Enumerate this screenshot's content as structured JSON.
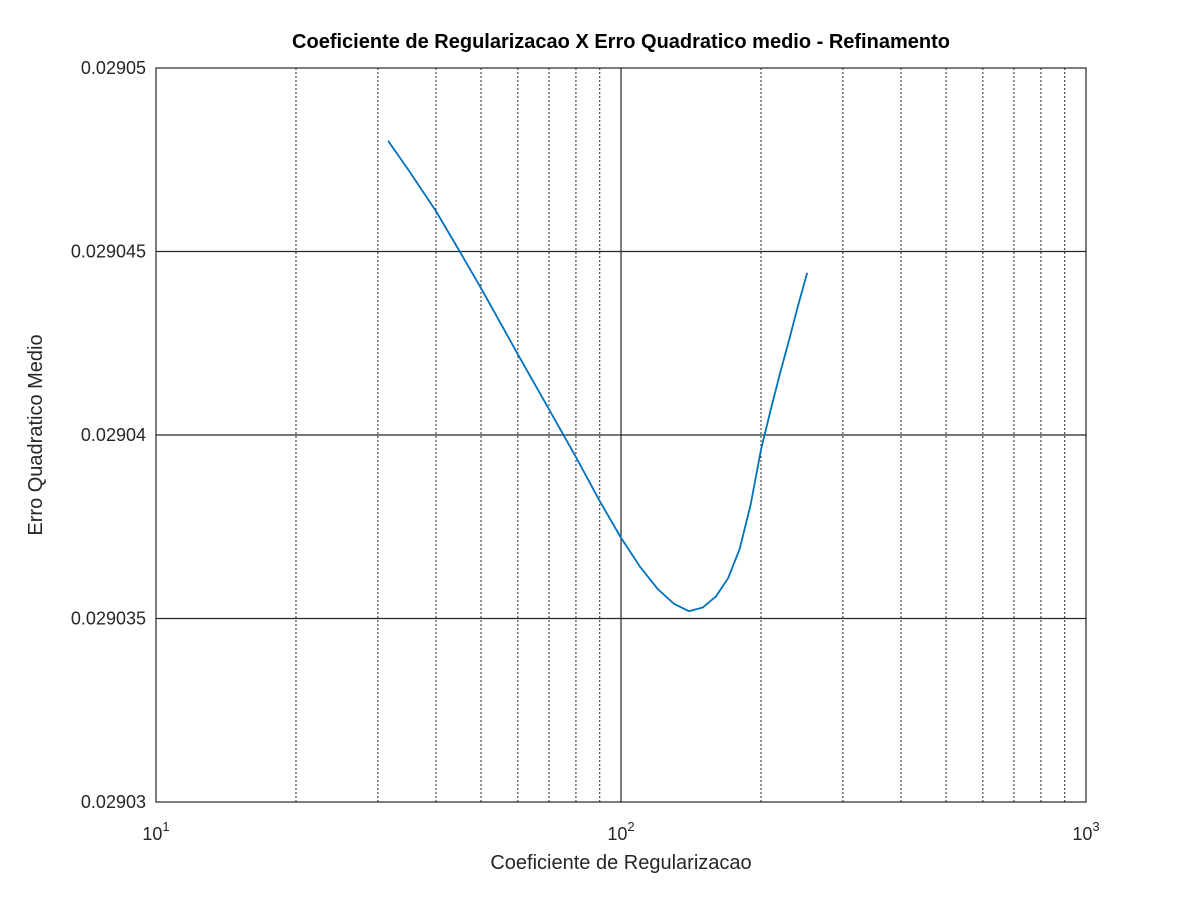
{
  "chart_data": {
    "type": "line",
    "title": "Coeficiente de Regularizacao X Erro Quadratico medio - Refinamento",
    "xlabel": "Coeficiente de Regularizacao",
    "ylabel": "Erro Quadratico Medio",
    "xscale": "log",
    "xlim": [
      10,
      1000
    ],
    "ylim": [
      0.02903,
      0.02905
    ],
    "grid": true,
    "x_ticks": [
      {
        "value": 10,
        "base": "10",
        "exp": "1"
      },
      {
        "value": 100,
        "base": "10",
        "exp": "2"
      },
      {
        "value": 1000,
        "base": "10",
        "exp": "3"
      }
    ],
    "y_ticks": [
      {
        "value": 0.02903,
        "label": "0.02903"
      },
      {
        "value": 0.029035,
        "label": "0.029035"
      },
      {
        "value": 0.02904,
        "label": "0.02904"
      },
      {
        "value": 0.029045,
        "label": "0.029045"
      },
      {
        "value": 0.02905,
        "label": "0.02905"
      }
    ],
    "series": [
      {
        "color": "#0072bd",
        "x": [
          31.62,
          35,
          40,
          45,
          50,
          60,
          70,
          80,
          90,
          100,
          110,
          120,
          130,
          140,
          150,
          160,
          170,
          180,
          190,
          200,
          210,
          220,
          230,
          240,
          251.19
        ],
        "y": [
          0.029048,
          0.0290472,
          0.0290461,
          0.029045,
          0.029044,
          0.0290422,
          0.0290407,
          0.0290394,
          0.0290382,
          0.0290372,
          0.0290364,
          0.0290358,
          0.0290354,
          0.0290352,
          0.0290353,
          0.0290356,
          0.0290361,
          0.0290369,
          0.0290381,
          0.0290396,
          0.0290407,
          0.0290417,
          0.0290426,
          0.0290435,
          0.0290444
        ]
      }
    ]
  }
}
